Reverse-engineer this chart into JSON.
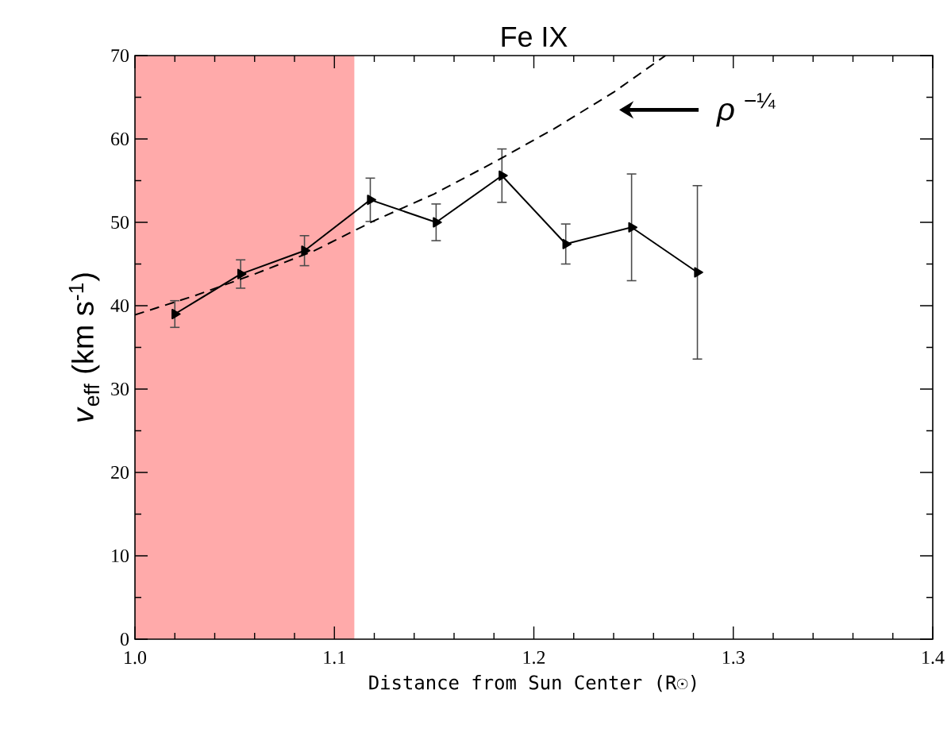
{
  "chart_data": {
    "type": "line",
    "title": "Fe IX",
    "xlabel": "Distance from Sun Center (R☉)",
    "ylabel": "*v*$_{eff}$ (km s$^{-1}$)",
    "xlim": [
      1.0,
      1.4
    ],
    "ylim": [
      0,
      70
    ],
    "xticks": [
      {
        "value": 1.0,
        "label": "1.0"
      },
      {
        "value": 1.1,
        "label": "1.1"
      },
      {
        "value": 1.2,
        "label": "1.2"
      },
      {
        "value": 1.3,
        "label": "1.3"
      },
      {
        "value": 1.4,
        "label": "1.4"
      }
    ],
    "yticks": [
      0,
      10,
      20,
      30,
      40,
      50,
      60,
      70
    ],
    "grid": false,
    "bands": [
      {
        "axis": "x",
        "from": 1.0,
        "to": 1.11,
        "color": "#ffaaaa"
      }
    ],
    "annotations": [
      "*ρ* $^{−¼}$"
    ],
    "series": [
      {
        "color": "#000000",
        "marker": "triangle",
        "line_style": "solid",
        "x": [
          1.02,
          1.053,
          1.085,
          1.118,
          1.151,
          1.184,
          1.216,
          1.249,
          1.282
        ],
        "values": [
          39.0,
          43.8,
          46.6,
          52.7,
          50.0,
          55.6,
          47.4,
          49.4,
          44.0
        ],
        "errors": [
          1.6,
          1.7,
          1.8,
          2.6,
          2.2,
          3.2,
          2.4,
          6.4,
          10.4
        ]
      },
      {
        "color": "#000000",
        "marker": "none",
        "line_style": "dashed",
        "x": [
          1.0,
          1.03,
          1.06,
          1.09,
          1.12,
          1.15,
          1.18,
          1.21,
          1.24,
          1.266
        ],
        "values": [
          38.9,
          41.2,
          43.8,
          46.6,
          50.2,
          53.4,
          57.2,
          61.2,
          65.6,
          70.0
        ]
      }
    ]
  }
}
